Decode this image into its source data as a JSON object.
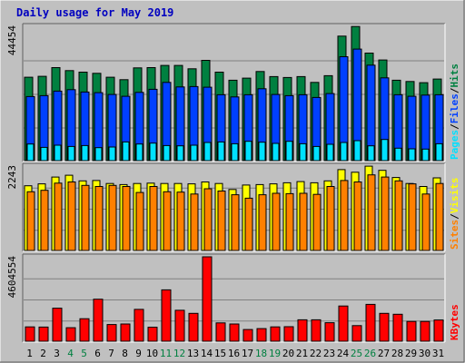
{
  "title": "Daily usage for May 2019",
  "colors": {
    "background": "#c0c0c0",
    "title": "#0000c0",
    "hits": "#008040",
    "files": "#0040ff",
    "pages": "#00e0ff",
    "visits": "#ffff00",
    "sites": "#ff8000",
    "kbytes": "#ff0000",
    "weekend_label": "#008040",
    "weekday_label": "#000000"
  },
  "chart_data": [
    {
      "type": "bar",
      "panel": "hits-files-pages",
      "categories": [
        "1",
        "2",
        "3",
        "4",
        "5",
        "6",
        "7",
        "8",
        "9",
        "10",
        "11",
        "12",
        "13",
        "14",
        "15",
        "16",
        "17",
        "18",
        "19",
        "20",
        "21",
        "22",
        "23",
        "24",
        "25",
        "26",
        "27",
        "28",
        "29",
        "30",
        "31"
      ],
      "ymax_label": "44454",
      "ymax": 44454,
      "axis_label_parts": [
        "Pages",
        "/",
        "Files",
        "/",
        "Hits"
      ],
      "series": [
        {
          "name": "Hits",
          "color": "#008040",
          "values": [
            27600,
            27900,
            30800,
            29800,
            29300,
            28900,
            27600,
            26800,
            30700,
            30800,
            31500,
            31500,
            30400,
            33200,
            29300,
            26600,
            27300,
            29500,
            27800,
            27500,
            27800,
            25900,
            28100,
            41200,
            44400,
            35600,
            33300,
            26600,
            26200,
            25800,
            27000
          ]
        },
        {
          "name": "Files",
          "color": "#0040ff",
          "values": [
            21200,
            21500,
            23000,
            23500,
            22700,
            22500,
            21900,
            21300,
            22600,
            23600,
            25900,
            24400,
            24500,
            24300,
            21800,
            21100,
            21800,
            23800,
            21900,
            21500,
            21800,
            20900,
            22200,
            34400,
            36900,
            31600,
            27400,
            21800,
            21300,
            21700,
            21800
          ]
        },
        {
          "name": "Pages",
          "color": "#00e0ff",
          "values": [
            5500,
            4400,
            5100,
            4700,
            5000,
            4300,
            4500,
            6200,
            5500,
            5800,
            5000,
            4900,
            5100,
            6000,
            6200,
            5600,
            6400,
            6100,
            5700,
            6400,
            5600,
            4700,
            5400,
            6000,
            6600,
            4900,
            7000,
            4100,
            3900,
            3800,
            5600
          ]
        }
      ]
    },
    {
      "type": "bar",
      "panel": "visits-sites",
      "categories": [
        "1",
        "2",
        "3",
        "4",
        "5",
        "6",
        "7",
        "8",
        "9",
        "10",
        "11",
        "12",
        "13",
        "14",
        "15",
        "16",
        "17",
        "18",
        "19",
        "20",
        "21",
        "22",
        "23",
        "24",
        "25",
        "26",
        "27",
        "28",
        "29",
        "30",
        "31"
      ],
      "ymax_label": "2243",
      "ymax": 2243,
      "axis_label_parts": [
        "Sites",
        "/",
        "Visits"
      ],
      "series": [
        {
          "name": "Visits",
          "color": "#ffff00",
          "values": [
            1720,
            1770,
            1950,
            2000,
            1850,
            1860,
            1780,
            1750,
            1780,
            1790,
            1780,
            1780,
            1770,
            1820,
            1780,
            1620,
            1740,
            1750,
            1770,
            1800,
            1830,
            1800,
            1850,
            2150,
            2080,
            2240,
            2130,
            1940,
            1780,
            1700,
            1930
          ]
        },
        {
          "name": "Sites",
          "color": "#ff8000",
          "values": [
            1560,
            1600,
            1790,
            1820,
            1730,
            1700,
            1730,
            1700,
            1540,
            1700,
            1560,
            1550,
            1500,
            1640,
            1580,
            1480,
            1390,
            1480,
            1520,
            1510,
            1520,
            1490,
            1700,
            1860,
            1820,
            2010,
            1950,
            1850,
            1770,
            1500,
            1780
          ]
        }
      ]
    },
    {
      "type": "bar",
      "panel": "kbytes",
      "categories": [
        "1",
        "2",
        "3",
        "4",
        "5",
        "6",
        "7",
        "8",
        "9",
        "10",
        "11",
        "12",
        "13",
        "14",
        "15",
        "16",
        "17",
        "18",
        "19",
        "20",
        "21",
        "22",
        "23",
        "24",
        "25",
        "26",
        "27",
        "28",
        "29",
        "30",
        "31"
      ],
      "ymax_label": "4604554",
      "ymax": 4604554,
      "axis_label_parts": [
        "KBytes"
      ],
      "series": [
        {
          "name": "KBytes",
          "color": "#ff0000",
          "values": [
            780,
            770,
            1800,
            740,
            1230,
            2290,
            910,
            940,
            1740,
            760,
            2800,
            1690,
            1520,
            4604,
            1000,
            940,
            640,
            690,
            780,
            790,
            1170,
            1170,
            1010,
            1920,
            850,
            2010,
            1520,
            1470,
            1080,
            1080,
            1160
          ]
        }
      ]
    }
  ],
  "x_weekend_days": [
    "4",
    "5",
    "11",
    "12",
    "18",
    "19",
    "25",
    "26"
  ]
}
